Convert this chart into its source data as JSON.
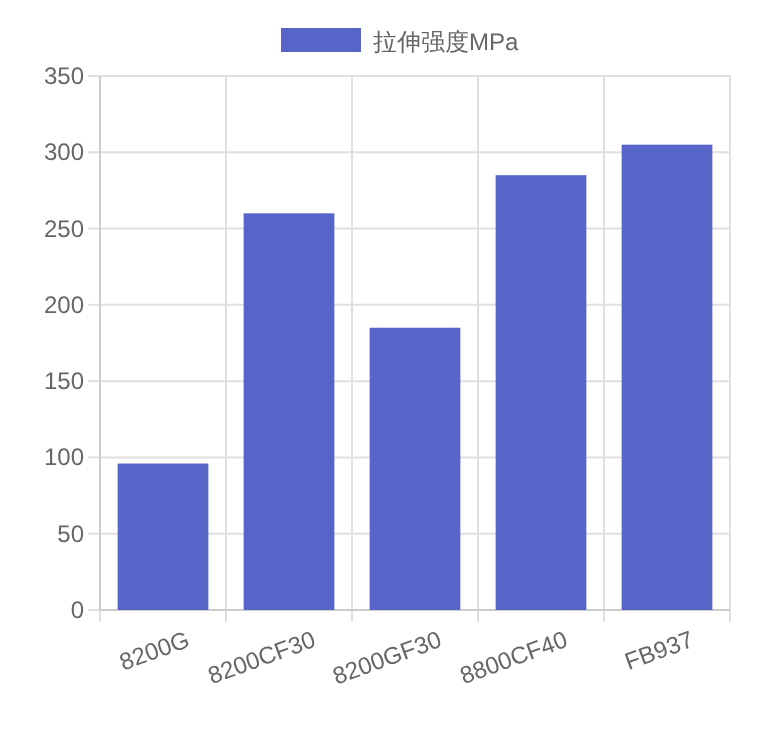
{
  "chart_data": {
    "type": "bar",
    "categories": [
      "8200G",
      "8200CF30",
      "8200GF30",
      "8800CF40",
      "FB937"
    ],
    "series": [
      {
        "name": "拉伸强度MPa",
        "color": "#5865c8",
        "values": [
          96,
          260,
          185,
          285,
          305
        ]
      }
    ],
    "ylim": [
      0,
      350
    ],
    "yticks": [
      0,
      50,
      100,
      150,
      200,
      250,
      300,
      350
    ],
    "grid": true,
    "legend": "top"
  }
}
